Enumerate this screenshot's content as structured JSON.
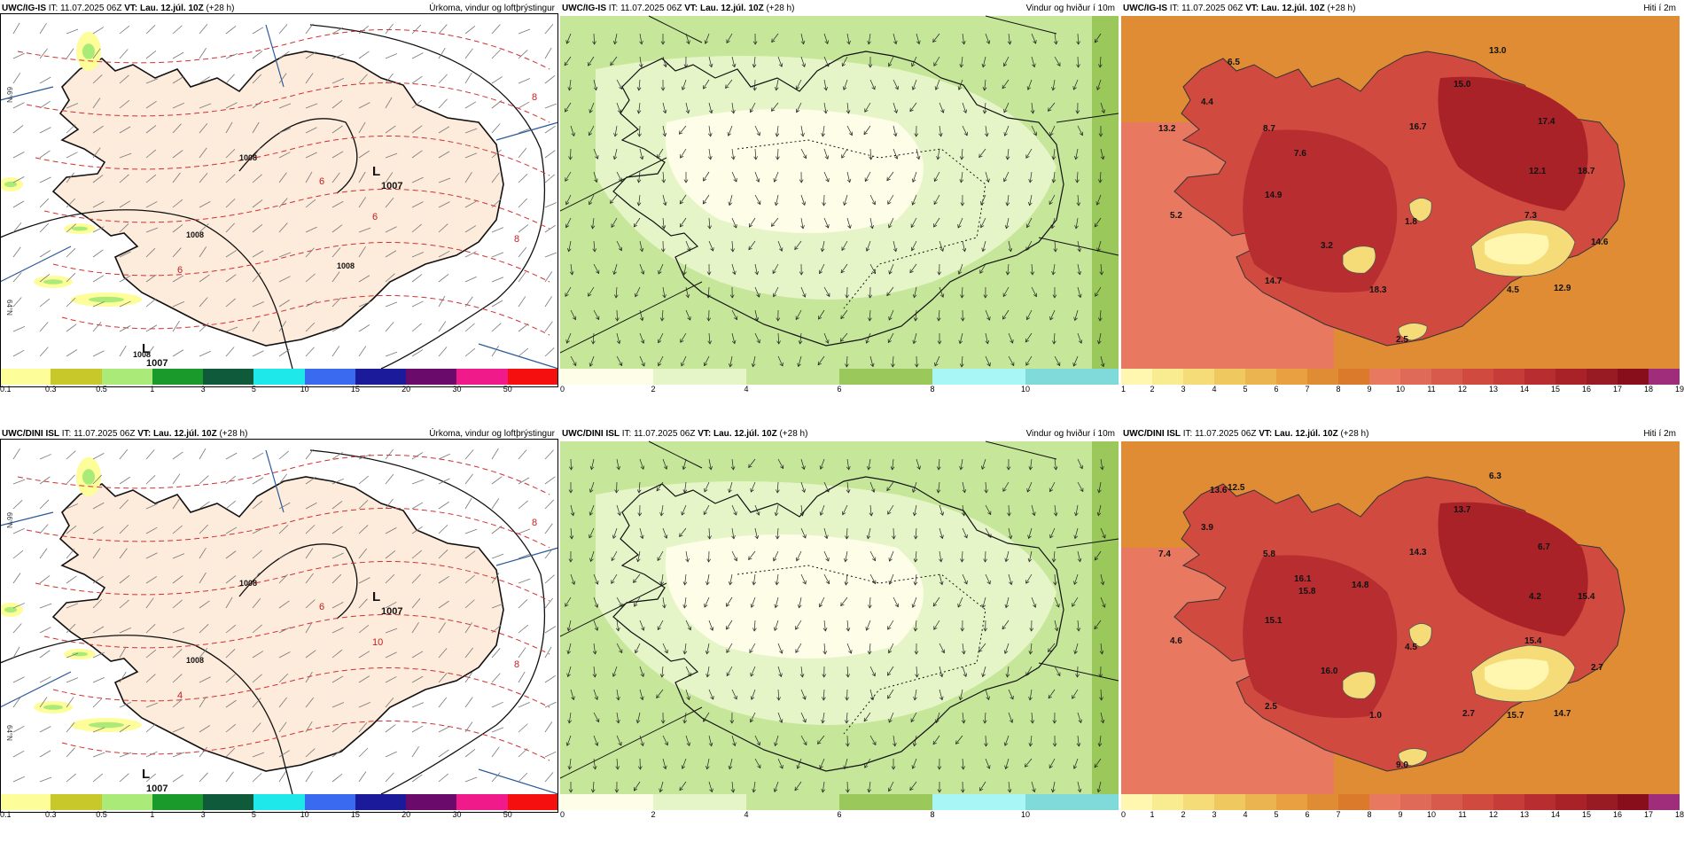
{
  "panels": [
    {
      "model": "UWC/IG-IS",
      "it_label": "IT: 11.07.2025 06Z",
      "vt_label": "VT: Lau. 12.júl. 10Z",
      "lead": "(+28 h)",
      "title": "Úrkoma, vindur og loftþrýstingur",
      "kind": "precip",
      "pressure_labels": [
        "1007",
        "1007",
        "1008",
        "1008",
        "1008",
        "1008"
      ],
      "low_marker": "L",
      "temp_labels": [
        "6",
        "8",
        "6",
        "8",
        "6"
      ],
      "lat_labels": [
        "66°N",
        "64°N"
      ],
      "colors": [
        "#fdfd9a",
        "#c8c82a",
        "#aaea78",
        "#1a9a2a",
        "#0f5a3a",
        "#1ee8ea",
        "#3a6af0",
        "#1a1a9a",
        "#6a0a6a",
        "#f01a8a",
        "#f50f0f"
      ],
      "ticks": [
        "0.1",
        "0.3",
        "0.5",
        "1",
        "3",
        "5",
        "10",
        "15",
        "20",
        "30",
        "50"
      ]
    },
    {
      "model": "UWC/IG-IS",
      "it_label": "IT: 11.07.2025 06Z",
      "vt_label": "VT: Lau. 12.júl. 10Z",
      "lead": "(+28 h)",
      "title": "Vindur og hviður í 10m",
      "kind": "wind",
      "colors": [
        "#fdfde8",
        "#e6f5c8",
        "#c6e69a",
        "#9ac85a",
        "#a8f6f6",
        "#80dada"
      ],
      "ticks": [
        "0",
        "2",
        "4",
        "6",
        "8",
        "10"
      ]
    },
    {
      "model": "UWC/IG-IS",
      "it_label": "IT: 11.07.2025 06Z",
      "vt_label": "VT: Lau. 12.júl. 10Z",
      "lead": "(+28 h)",
      "title": "Hiti í 2m",
      "kind": "temp",
      "temp_values": [
        "6.5",
        "4.4",
        "13.2",
        "8.7",
        "7.6",
        "16.7",
        "15.0",
        "13.0",
        "17.4",
        "12.1",
        "18.7",
        "14.9",
        "5.2",
        "3.2",
        "1.8",
        "7.3",
        "14.6",
        "14.7",
        "18.3",
        "4.5",
        "12.9",
        "2.5"
      ],
      "colors": [
        "#fff7b0",
        "#f9eb90",
        "#f5dc78",
        "#f0c860",
        "#ecb450",
        "#e8a040",
        "#e08c34",
        "#dc7a2c",
        "#e87860",
        "#e06a58",
        "#d85a4c",
        "#d04a40",
        "#c63c38",
        "#b82e30",
        "#a82228",
        "#981a22",
        "#880e1c",
        "#a02c7c"
      ],
      "ticks": [
        "1",
        "2",
        "3",
        "4",
        "5",
        "6",
        "7",
        "8",
        "9",
        "10",
        "11",
        "12",
        "13",
        "14",
        "15",
        "16",
        "17",
        "18",
        "19"
      ]
    },
    {
      "model": "UWC/DINI ISL",
      "it_label": "IT: 11.07.2025 06Z",
      "vt_label": "VT: Lau. 12.júl. 10Z",
      "lead": "(+28 h)",
      "title": "Úrkoma, vindur og loftþrýstingur",
      "kind": "precip",
      "pressure_labels": [
        "1007",
        "1007",
        "1008",
        "1008"
      ],
      "low_marker": "L",
      "temp_labels": [
        "6",
        "8",
        "10",
        "8",
        "4"
      ],
      "lat_labels": [
        "66°N",
        "64°N"
      ],
      "colors": [
        "#fdfd9a",
        "#c8c82a",
        "#aaea78",
        "#1a9a2a",
        "#0f5a3a",
        "#1ee8ea",
        "#3a6af0",
        "#1a1a9a",
        "#6a0a6a",
        "#f01a8a",
        "#f50f0f"
      ],
      "ticks": [
        "0.1",
        "0.3",
        "0.5",
        "1",
        "3",
        "5",
        "10",
        "15",
        "20",
        "30",
        "50"
      ]
    },
    {
      "model": "UWC/DINI ISL",
      "it_label": "IT: 11.07.2025 06Z",
      "vt_label": "VT: Lau. 12.júl. 10Z",
      "lead": "(+28 h)",
      "title": "Vindur og hviður í 10m",
      "kind": "wind",
      "colors": [
        "#fdfde8",
        "#e6f5c8",
        "#c6e69a",
        "#9ac85a",
        "#a8f6f6",
        "#80dada"
      ],
      "ticks": [
        "0",
        "2",
        "4",
        "6",
        "8",
        "10"
      ]
    },
    {
      "model": "UWC/DINI ISL",
      "it_label": "IT: 11.07.2025 06Z",
      "vt_label": "VT: Lau. 12.júl. 10Z",
      "lead": "(+28 h)",
      "title": "Hiti í 2m",
      "kind": "temp",
      "temp_values": [
        "12.5",
        "3.9",
        "7.4",
        "5.8",
        "16.1",
        "14.3",
        "13.7",
        "6.3",
        "6.7",
        "4.2",
        "15.4",
        "15.1",
        "4.6",
        "16.0",
        "4.5",
        "15.4",
        "2.7",
        "2.5",
        "1.0",
        "15.7",
        "14.7",
        "9.0",
        "13.6",
        "15.8",
        "14.8",
        "2.7"
      ],
      "colors": [
        "#fff7b0",
        "#f9eb90",
        "#f5dc78",
        "#f0c860",
        "#ecb450",
        "#e8a040",
        "#e08c34",
        "#dc7a2c",
        "#e87860",
        "#e06a58",
        "#d85a4c",
        "#d04a40",
        "#c63c38",
        "#b82e30",
        "#a82228",
        "#981a22",
        "#880e1c",
        "#a02c7c"
      ],
      "ticks": [
        "0",
        "1",
        "2",
        "3",
        "4",
        "5",
        "6",
        "7",
        "8",
        "9",
        "10",
        "11",
        "12",
        "13",
        "14",
        "15",
        "16",
        "17",
        "18"
      ]
    }
  ]
}
